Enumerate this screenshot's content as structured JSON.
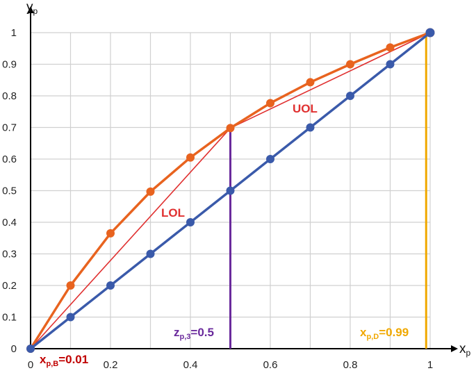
{
  "chart_data": {
    "type": "line",
    "x_label": {
      "main": "x",
      "sub": "p"
    },
    "y_label": {
      "main": "y",
      "sub": "p"
    },
    "xlim": [
      0,
      1
    ],
    "ylim": [
      0,
      1
    ],
    "grid": true,
    "x_ticks": [
      "0",
      "0.2",
      "0.4",
      "0.6",
      "0.8",
      "1"
    ],
    "y_ticks": [
      "0",
      "0.1",
      "0.2",
      "0.3",
      "0.4",
      "0.5",
      "0.6",
      "0.7",
      "0.8",
      "0.9",
      "1"
    ],
    "series": [
      {
        "key": "equilibrium",
        "color": "#e8631f",
        "x": [
          0,
          0.1,
          0.2,
          0.3,
          0.4,
          0.5,
          0.6,
          0.7,
          0.8,
          0.9,
          1
        ],
        "y": [
          0,
          0.2,
          0.365,
          0.497,
          0.605,
          0.698,
          0.777,
          0.843,
          0.9,
          0.953,
          1
        ]
      },
      {
        "key": "diagonal",
        "color": "#3a5aaa",
        "x": [
          0,
          0.1,
          0.2,
          0.3,
          0.4,
          0.5,
          0.6,
          0.7,
          0.8,
          0.9,
          1
        ],
        "y": [
          0,
          0.1,
          0.2,
          0.3,
          0.4,
          0.5,
          0.6,
          0.7,
          0.8,
          0.9,
          1
        ]
      }
    ],
    "operating_lines": [
      {
        "key": "lol",
        "label": "LOL",
        "color": "#e03030",
        "x": [
          0,
          0.5
        ],
        "y": [
          0,
          0.698
        ]
      },
      {
        "key": "uol",
        "label": "UOL",
        "color": "#e03030",
        "x": [
          0.5,
          1
        ],
        "y": [
          0.698,
          1
        ]
      }
    ],
    "vertical_lines": [
      {
        "key": "zp3",
        "label_main": "z",
        "label_sub": "p,3",
        "label_value": "=0.5",
        "x": 0.5,
        "y_top": 0.698,
        "color": "#6a2a9c"
      },
      {
        "key": "xpd",
        "label_main": "x",
        "label_sub": "p,D",
        "label_value": "=0.99",
        "x": 0.99,
        "y_top": 1,
        "color": "#f0a800"
      }
    ],
    "annotations": [
      {
        "key": "xpb",
        "label_main": "x",
        "label_sub": "p,B",
        "label_value": "=0.01",
        "color": "#c00000"
      }
    ]
  }
}
